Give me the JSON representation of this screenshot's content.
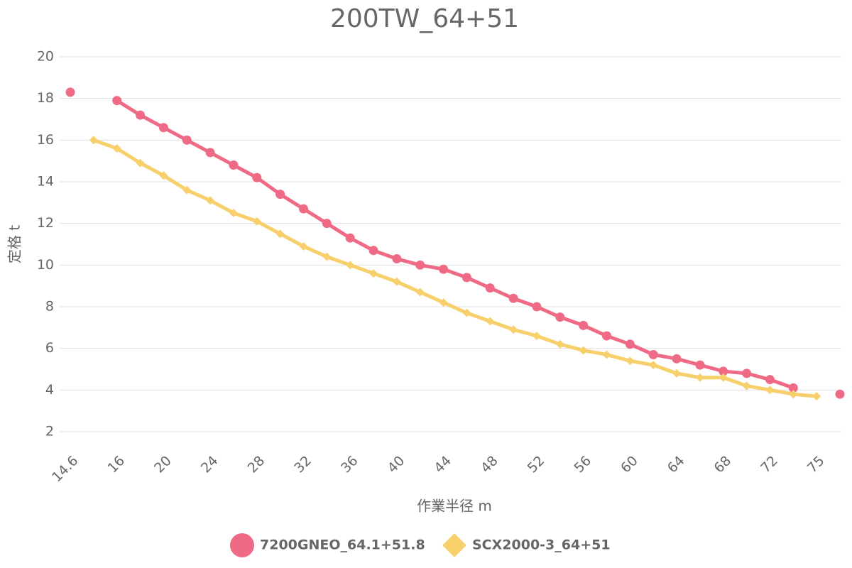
{
  "chart_data": {
    "type": "line",
    "title": "200TW_64+51",
    "x_label": "作業半径 m",
    "y_label": "定格 t",
    "categories": [
      "14.6",
      null,
      "16",
      null,
      "20",
      null,
      "24",
      null,
      "28",
      null,
      "32",
      null,
      "36",
      null,
      "40",
      null,
      "44",
      null,
      "48",
      null,
      "52",
      null,
      "56",
      null,
      "60",
      null,
      "64",
      null,
      "68",
      null,
      "72",
      null,
      "75",
      null
    ],
    "series": [
      {
        "name": "7200GNEO_64.1+51.8",
        "color": "#ef6b85",
        "marker": "circle",
        "values": [
          18.3,
          null,
          17.9,
          17.2,
          16.6,
          16.0,
          15.4,
          14.8,
          14.2,
          13.4,
          12.7,
          12.0,
          11.3,
          10.7,
          10.3,
          10.0,
          9.8,
          9.4,
          8.9,
          8.4,
          8.0,
          7.5,
          7.1,
          6.6,
          6.2,
          5.7,
          5.5,
          5.2,
          4.9,
          4.8,
          4.5,
          4.1,
          null,
          3.8
        ]
      },
      {
        "name": "SCX2000-3_64+51",
        "color": "#f7cf6b",
        "marker": "diamond",
        "values": [
          null,
          16.0,
          15.6,
          14.9,
          14.3,
          13.6,
          13.1,
          12.5,
          12.1,
          11.5,
          10.9,
          10.4,
          10.0,
          9.6,
          9.2,
          8.7,
          8.2,
          7.7,
          7.3,
          6.9,
          6.6,
          6.2,
          5.9,
          5.7,
          5.4,
          5.2,
          4.8,
          4.6,
          4.6,
          4.2,
          4.0,
          3.8,
          3.7,
          null
        ]
      }
    ],
    "ylim": [
      2,
      20
    ],
    "yticks": [
      2,
      4,
      6,
      8,
      10,
      12,
      14,
      16,
      18,
      20
    ],
    "grid": true,
    "legend": "bottom"
  }
}
